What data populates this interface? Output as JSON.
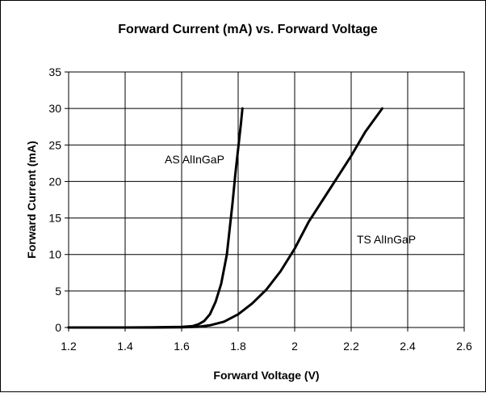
{
  "chart_data": {
    "type": "line",
    "title": "Forward Current (mA) vs. Forward Voltage",
    "xlabel": "Forward Voltage (V)",
    "ylabel": "Forward Current (mA)",
    "xlim": [
      1.2,
      2.6
    ],
    "ylim": [
      0,
      35
    ],
    "xticks": [
      1.2,
      1.4,
      1.6,
      1.8,
      2,
      2.2,
      2.4,
      2.6
    ],
    "yticks": [
      0,
      5,
      10,
      15,
      20,
      25,
      30,
      35
    ],
    "xtick_labels": [
      "1.2",
      "1.4",
      "1.6",
      "1.8",
      "2",
      "2.2",
      "2.4",
      "2.6"
    ],
    "ytick_labels": [
      "0",
      "5",
      "10",
      "15",
      "20",
      "25",
      "30",
      "35"
    ],
    "grid": true,
    "series": [
      {
        "name": "AS AlInGaP",
        "color": "#000000",
        "x": [
          1.2,
          1.4,
          1.5,
          1.6,
          1.64,
          1.66,
          1.68,
          1.7,
          1.72,
          1.74,
          1.76,
          1.77,
          1.78,
          1.79,
          1.8,
          1.81,
          1.815
        ],
        "y": [
          0,
          0,
          0.02,
          0.08,
          0.2,
          0.45,
          0.9,
          1.8,
          3.5,
          6,
          10,
          13.5,
          17,
          21,
          24.5,
          28,
          30
        ]
      },
      {
        "name": "TS AlInGaP",
        "color": "#000000",
        "x": [
          1.2,
          1.5,
          1.6,
          1.66,
          1.7,
          1.75,
          1.8,
          1.85,
          1.9,
          1.95,
          2.0,
          2.05,
          2.1,
          2.15,
          2.2,
          2.25,
          2.31
        ],
        "y": [
          0,
          0,
          0.03,
          0.1,
          0.3,
          0.8,
          1.8,
          3.3,
          5.2,
          7.7,
          10.8,
          14.5,
          17.5,
          20.5,
          23.5,
          26.8,
          30
        ]
      }
    ],
    "annotations": [
      {
        "text": "AS AlInGaP",
        "x": 1.54,
        "y": 22.5
      },
      {
        "text": "TS AlInGaP",
        "x": 2.22,
        "y": 11.5
      }
    ]
  }
}
